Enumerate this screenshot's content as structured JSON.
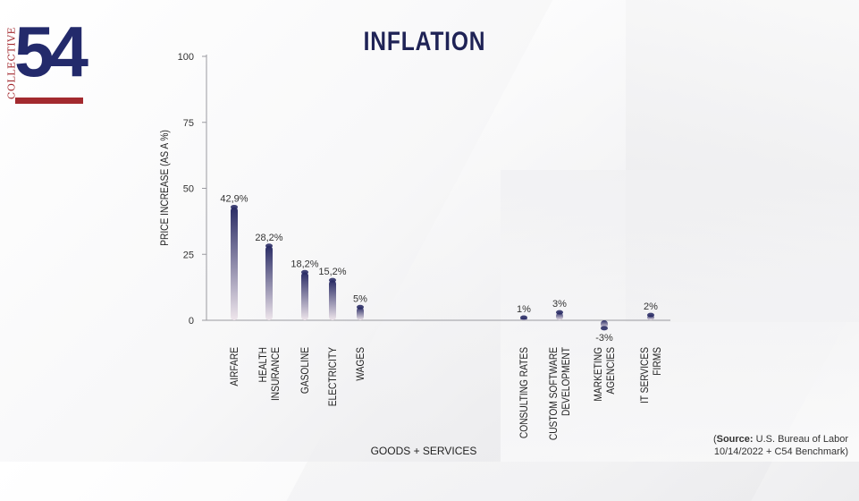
{
  "logo": {
    "word": "COLLECTIVE",
    "number": "54"
  },
  "chart_data": {
    "type": "bar",
    "title": "INFLATION",
    "xlabel": "GOODS + SERVICES",
    "ylabel": "PRICE INCREASE (AS A %)",
    "ylim": [
      0,
      100
    ],
    "yticks": [
      0,
      25,
      50,
      75,
      100
    ],
    "grid": false,
    "legend": "none",
    "categories": [
      "AIRFARE",
      "HEALTH INSURANCE",
      "GASOLINE",
      "ELECTRICITY",
      "WAGES",
      "CONSULTING RATES",
      "CUSTOM SOFTWARE DEVELOPMENT",
      "MARKETING AGENCIES",
      "IT SERVICES FIRMS"
    ],
    "category_lines": [
      [
        "AIRFARE"
      ],
      [
        "HEALTH",
        "INSURANCE"
      ],
      [
        "GASOLINE"
      ],
      [
        "ELECTRICITY"
      ],
      [
        "WAGES"
      ],
      [
        "CONSULTING RATES"
      ],
      [
        "CUSTOM SOFTWARE",
        "DEVELOPMENT"
      ],
      [
        "MARKETING",
        "AGENCIES"
      ],
      [
        "IT SERVICES",
        "FIRMS"
      ]
    ],
    "values": [
      42.9,
      28.2,
      18.2,
      15.2,
      5,
      1,
      3,
      -3,
      2
    ],
    "data_labels": [
      "42,9%",
      "28,2%",
      "18,2%",
      "15,2%",
      "5%",
      "1%",
      "3%",
      "-3%",
      "2%"
    ],
    "colors": {
      "bar_top": "#2b2d66",
      "bar_bottom": "#efe6ec"
    }
  },
  "source": {
    "label": "Source:",
    "line1": "U.S. Bureau of Labor",
    "line2": "10/14/2022 + C54 Benchmark)",
    "open_paren": "("
  }
}
